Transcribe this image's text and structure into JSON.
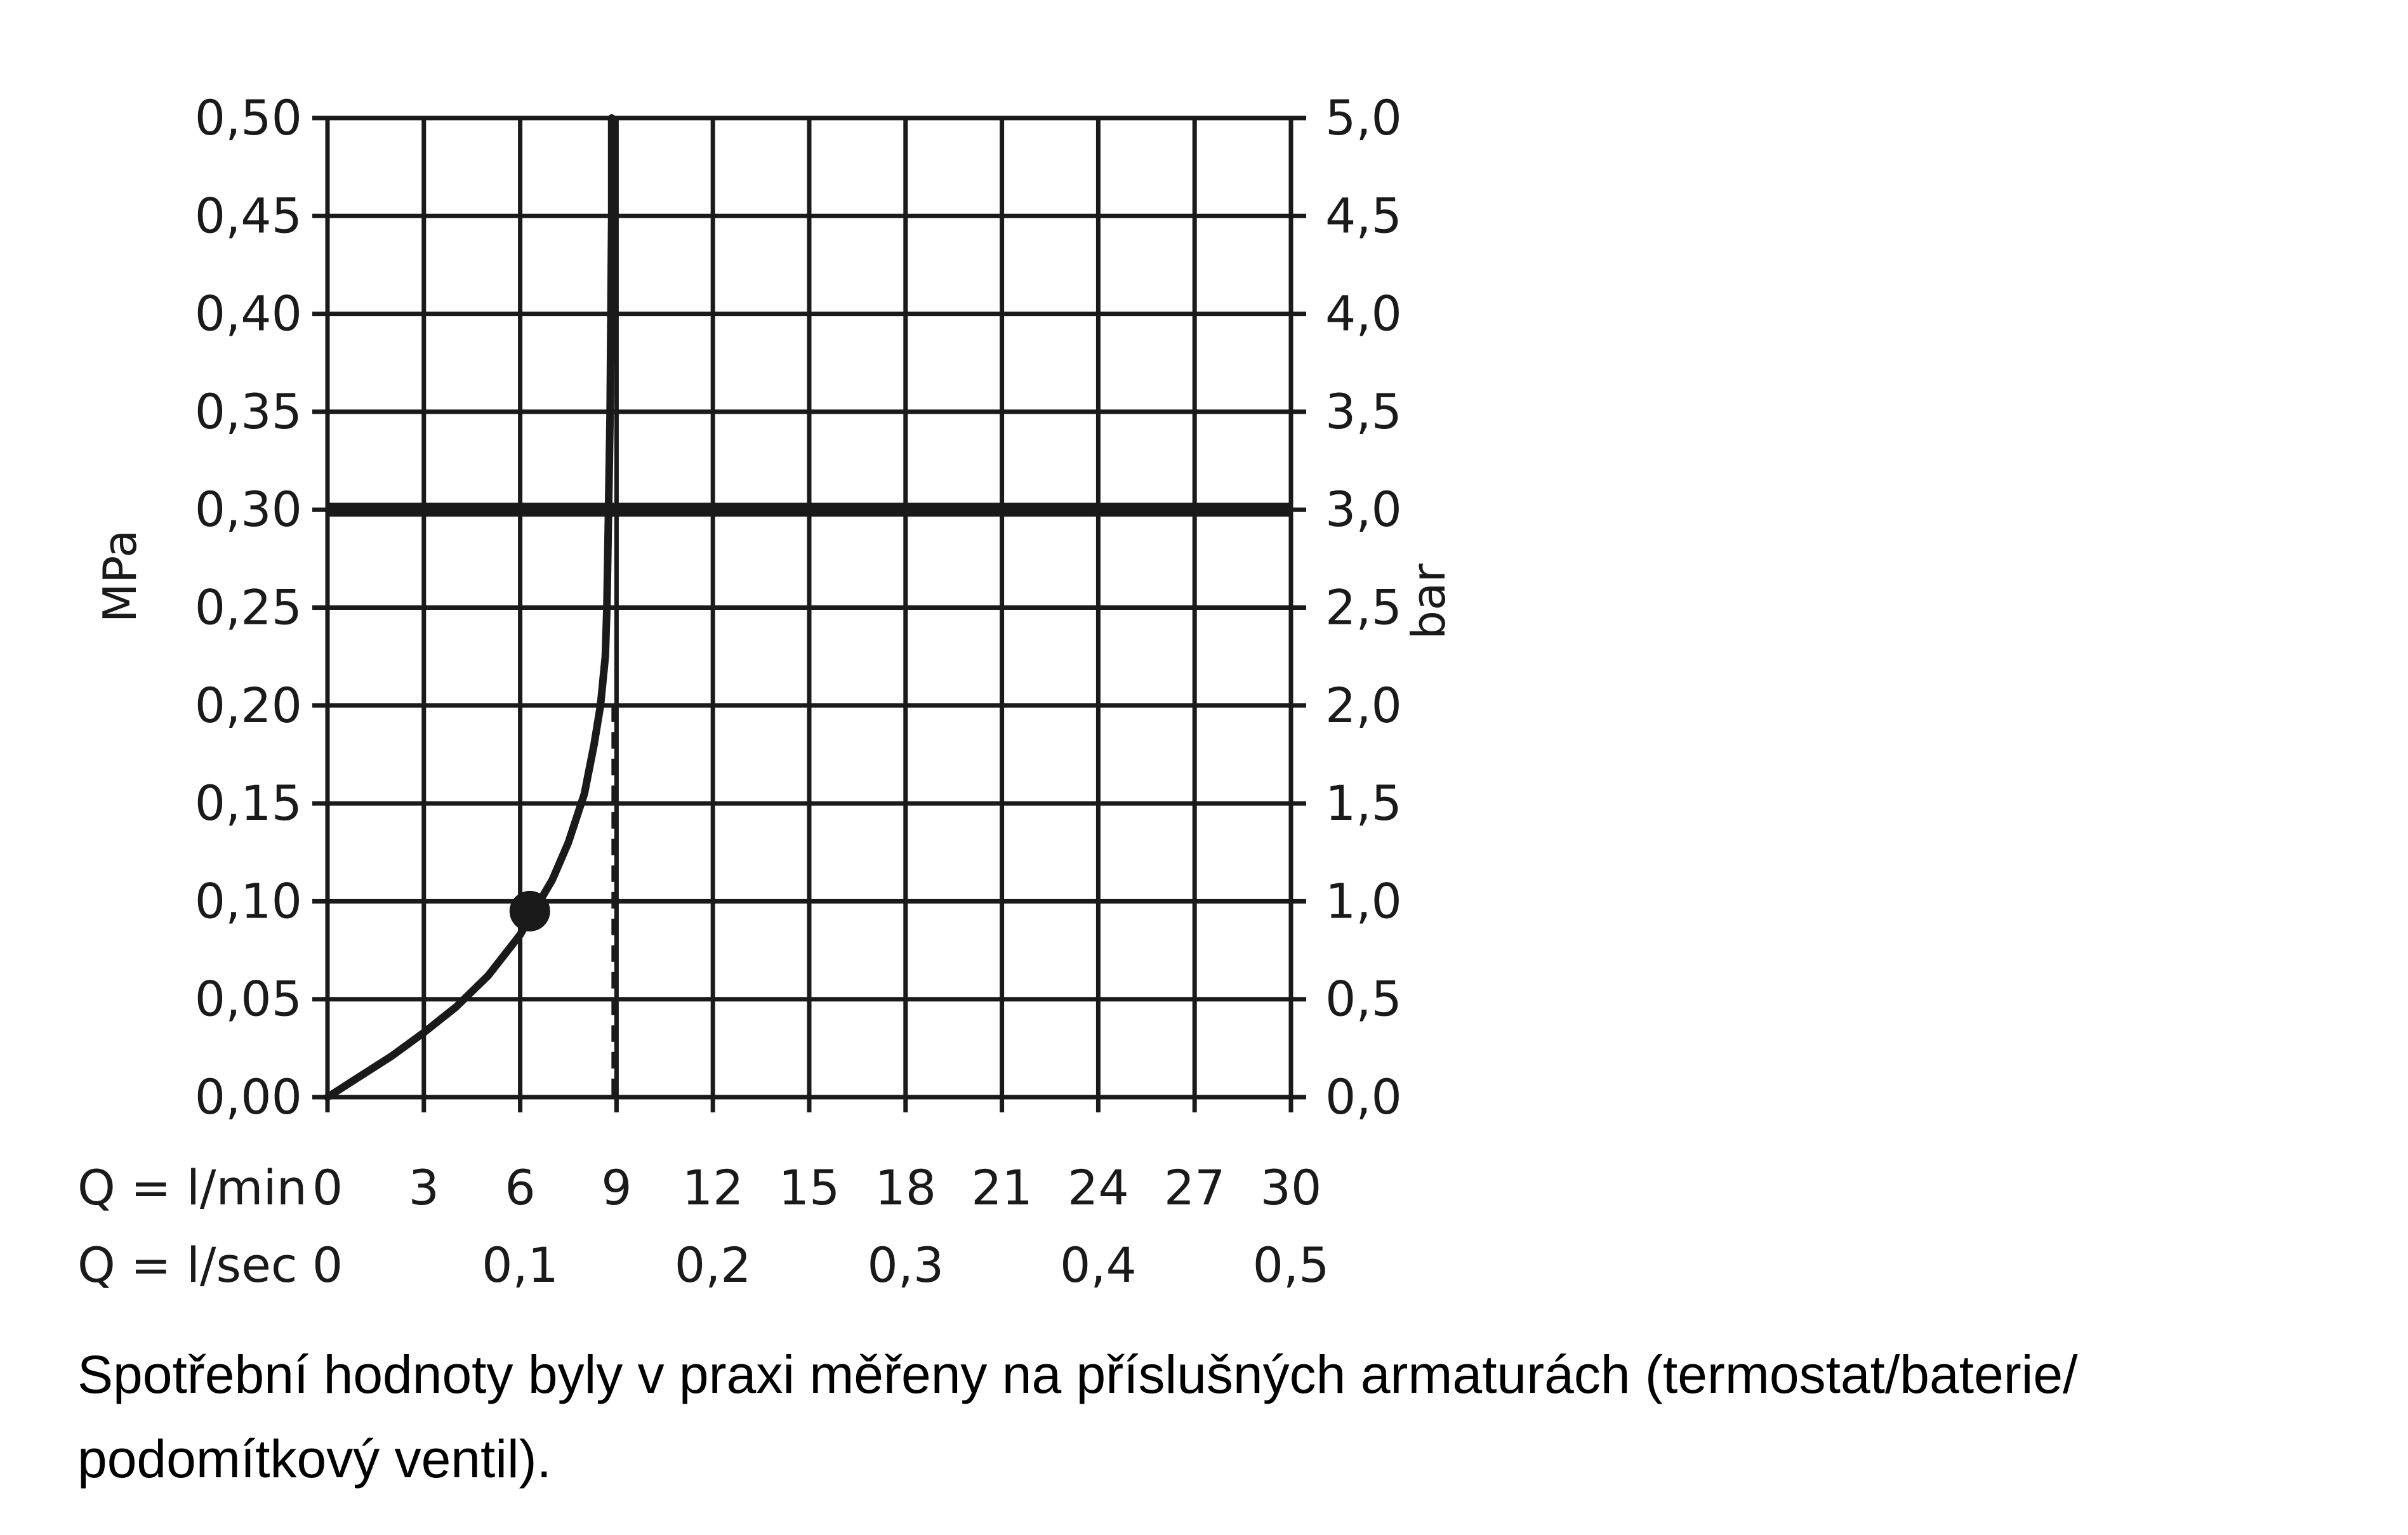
{
  "chart_data": {
    "type": "line",
    "y_left": {
      "label": "MPa",
      "range": [
        0,
        0.5
      ],
      "ticks": [
        "0,00",
        "0,05",
        "0,10",
        "0,15",
        "0,20",
        "0,25",
        "0,30",
        "0,35",
        "0,40",
        "0,45",
        "0,50"
      ]
    },
    "y_right": {
      "label": "bar",
      "range": [
        0,
        5
      ],
      "ticks": [
        "0,0",
        "0,5",
        "1,0",
        "1,5",
        "2,0",
        "2,5",
        "3,0",
        "3,5",
        "4,0",
        "4,5",
        "5,0"
      ]
    },
    "x_primary": {
      "label": "Q = l/min",
      "range": [
        0,
        30
      ],
      "tick_values": [
        0,
        3,
        6,
        9,
        12,
        15,
        18,
        21,
        24,
        27,
        30
      ],
      "ticks": [
        "0",
        "3",
        "6",
        "9",
        "12",
        "15",
        "18",
        "21",
        "24",
        "27",
        "30"
      ]
    },
    "x_secondary": {
      "label": "Q = l/sec",
      "tick_values": [
        0,
        6,
        12,
        18,
        24,
        30
      ],
      "ticks": [
        "0",
        "0,1",
        "0,2",
        "0,3",
        "0,4",
        "0,5"
      ]
    },
    "grid": true,
    "series": [
      {
        "x": [
          0,
          1,
          2,
          3,
          4,
          5,
          6,
          7,
          7.5,
          8,
          8.3,
          8.5,
          8.65,
          8.7,
          8.75,
          8.8,
          8.85,
          8.85
        ],
        "y": [
          0,
          0.0105,
          0.021,
          0.033,
          0.046,
          0.062,
          0.083,
          0.111,
          0.13,
          0.155,
          0.18,
          0.2,
          0.225,
          0.25,
          0.3,
          0.35,
          0.45,
          0.5
        ]
      }
    ],
    "reference_line_y": 0.3,
    "reference_dashed_x": 8.9,
    "marker": {
      "x": 6.3,
      "y": 0.095
    }
  },
  "caption": "Spotřební hodnoty byly v praxi měřeny na příslušných armaturách (termostat/baterie/ podomítkový ventil)."
}
